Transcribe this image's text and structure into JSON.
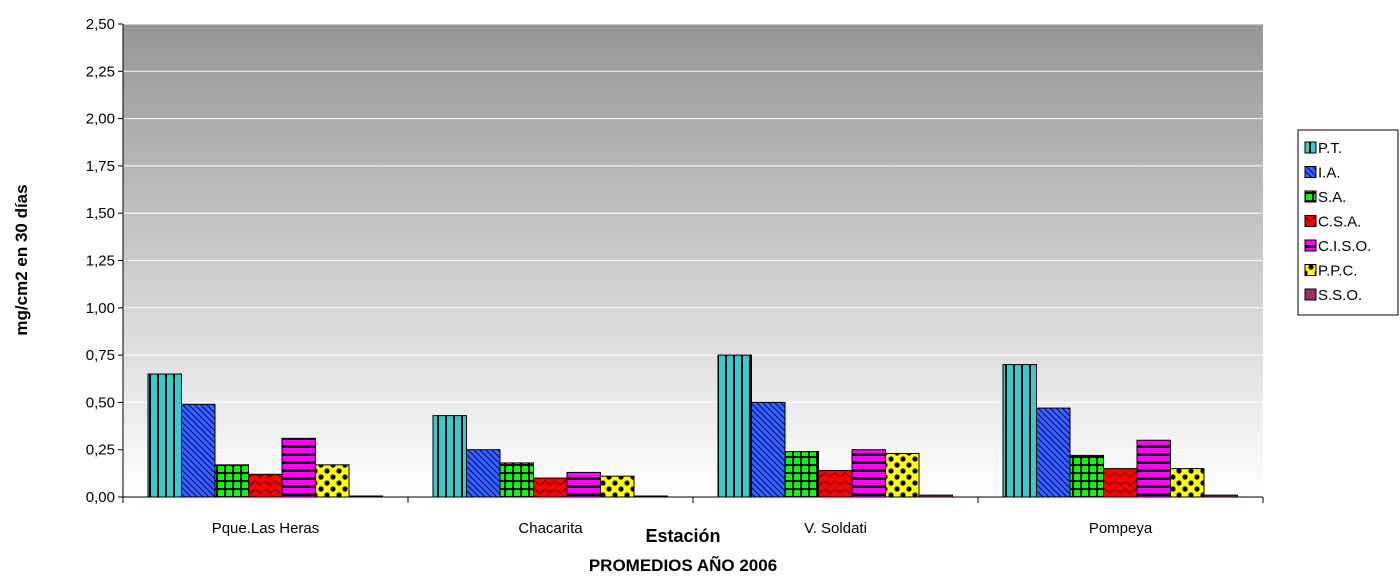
{
  "chart_data": {
    "type": "bar",
    "title": "",
    "xlabel": "Estación",
    "subtitle": "PROMEDIOS AÑO 2006",
    "ylabel": "mg/cm2 en 30 días",
    "ylim": [
      0,
      2.5
    ],
    "yticks": [
      "0,00",
      "0,25",
      "0,50",
      "0,75",
      "1,00",
      "1,25",
      "1,50",
      "1,75",
      "2,00",
      "2,25",
      "2,50"
    ],
    "grid": true,
    "legend_position": "right",
    "categories": [
      "Pque.Las Heras",
      "Chacarita",
      "V. Soldati",
      "Pompeya"
    ],
    "series": [
      {
        "name": "P.T.",
        "color": "#33CCCC",
        "pattern": "vertical-stripes",
        "values": [
          0.65,
          0.43,
          0.75,
          0.7
        ]
      },
      {
        "name": "I.A.",
        "color": "#3366FF",
        "pattern": "diagonal-stripes",
        "values": [
          0.49,
          0.25,
          0.5,
          0.47
        ]
      },
      {
        "name": "S.A.",
        "color": "#00FF00",
        "pattern": "grid",
        "values": [
          0.17,
          0.18,
          0.24,
          0.22
        ]
      },
      {
        "name": "C.S.A.",
        "color": "#FF0000",
        "pattern": "zigzag",
        "values": [
          0.12,
          0.1,
          0.14,
          0.15
        ]
      },
      {
        "name": "C.I.S.O.",
        "color": "#FF00FF",
        "pattern": "horizontal-stripes",
        "values": [
          0.31,
          0.13,
          0.25,
          0.3
        ]
      },
      {
        "name": "P.P.C.",
        "color": "#FFFF00",
        "pattern": "dots",
        "values": [
          0.17,
          0.11,
          0.23,
          0.15
        ]
      },
      {
        "name": "S.S.O.",
        "color": "#993366",
        "pattern": "solid",
        "values": [
          0.005,
          0.005,
          0.01,
          0.01
        ]
      }
    ],
    "colors": {
      "plot_top": "#969696",
      "plot_bottom": "#ffffff",
      "gridline": "#ffffff",
      "axis": "#000000"
    }
  }
}
